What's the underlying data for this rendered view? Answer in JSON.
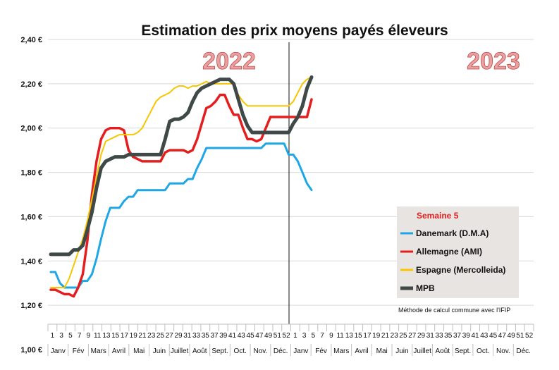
{
  "chart_data": {
    "type": "line",
    "title": "Estimation des prix moyens payés éleveurs",
    "year_labels": [
      "2022",
      "2023"
    ],
    "ylim": [
      1.0,
      2.4
    ],
    "yticks": [
      {
        "v": 1.0,
        "label": "1,00 €"
      },
      {
        "v": 1.2,
        "label": "1,20 €"
      },
      {
        "v": 1.4,
        "label": "1,40 €"
      },
      {
        "v": 1.6,
        "label": "1,60 €"
      },
      {
        "v": 1.8,
        "label": "1,80 €"
      },
      {
        "v": 2.0,
        "label": "2,00 €"
      },
      {
        "v": 2.2,
        "label": "2,20 €"
      },
      {
        "v": 2.4,
        "label": "2,40 €"
      }
    ],
    "x_week_labels": [
      "1",
      "3",
      "5",
      "7",
      "9",
      "11",
      "13",
      "15",
      "17",
      "19",
      "21",
      "23",
      "25",
      "27",
      "29",
      "31",
      "33",
      "35",
      "37",
      "39",
      "41",
      "43",
      "45",
      "47",
      "49",
      "51",
      "52",
      "1",
      "3",
      "5",
      "7",
      "9",
      "11",
      "13",
      "15",
      "17",
      "19",
      "21",
      "23",
      "25",
      "27",
      "29",
      "31",
      "33",
      "35",
      "37",
      "39",
      "41",
      "43",
      "45",
      "47",
      "49",
      "51",
      "52"
    ],
    "x_month_labels": [
      "Janv",
      "Fév",
      "Mars",
      "Avril",
      "Mai",
      "Juin",
      "Juillet",
      "Août",
      "Sept.",
      "Oct.",
      "Nov.",
      "Déc.",
      "Janv",
      "Fév",
      "Mars",
      "Avril",
      "Mai",
      "Juin",
      "Juillet",
      "Août",
      "Sept.",
      "Oct.",
      "Nov.",
      "Déc."
    ],
    "legend": {
      "title": "Semaine 5",
      "placement": "bottom-right"
    },
    "note": "Méthode de calcul commune avec l'IFIP",
    "series": [
      {
        "name": "Danemark (D.M.A)",
        "color": "#1ea7e4",
        "values": [
          1.35,
          1.35,
          1.3,
          1.28,
          1.28,
          1.28,
          1.28,
          1.31,
          1.31,
          1.34,
          1.41,
          1.5,
          1.58,
          1.64,
          1.64,
          1.64,
          1.67,
          1.69,
          1.69,
          1.72,
          1.72,
          1.72,
          1.72,
          1.72,
          1.72,
          1.72,
          1.75,
          1.75,
          1.75,
          1.75,
          1.77,
          1.77,
          1.82,
          1.86,
          1.91,
          1.91,
          1.91,
          1.91,
          1.91,
          1.91,
          1.91,
          1.91,
          1.91,
          1.91,
          1.91,
          1.91,
          1.91,
          1.93,
          1.93,
          1.93,
          1.93,
          1.93,
          1.88,
          1.88,
          1.85,
          1.8,
          1.75,
          1.72
        ]
      },
      {
        "name": "Allemagne (AMI)",
        "color": "#e41e1e",
        "values": [
          1.27,
          1.27,
          1.26,
          1.25,
          1.25,
          1.24,
          1.28,
          1.34,
          1.49,
          1.7,
          1.85,
          1.95,
          1.99,
          2.0,
          2.0,
          2.0,
          1.99,
          1.9,
          1.87,
          1.86,
          1.85,
          1.85,
          1.85,
          1.85,
          1.85,
          1.89,
          1.9,
          1.9,
          1.9,
          1.9,
          1.89,
          1.9,
          1.95,
          2.02,
          2.09,
          2.1,
          2.12,
          2.15,
          2.15,
          2.1,
          2.06,
          2.06,
          2.0,
          1.95,
          1.95,
          1.94,
          1.95,
          2.0,
          2.05,
          2.05,
          2.05,
          2.05,
          2.05,
          2.05,
          2.05,
          2.05,
          2.05,
          2.13
        ]
      },
      {
        "name": "Espagne (Mercolleida)",
        "color": "#f7c600",
        "values": [
          1.28,
          1.28,
          1.28,
          1.28,
          1.32,
          1.38,
          1.44,
          1.5,
          1.58,
          1.68,
          1.78,
          1.88,
          1.94,
          1.95,
          1.96,
          1.97,
          1.97,
          1.97,
          1.97,
          1.98,
          2.0,
          2.04,
          2.08,
          2.12,
          2.14,
          2.15,
          2.16,
          2.18,
          2.19,
          2.19,
          2.18,
          2.19,
          2.19,
          2.2,
          2.21,
          2.2,
          2.2,
          2.2,
          2.2,
          2.2,
          2.2,
          2.15,
          2.12,
          2.1,
          2.1,
          2.1,
          2.1,
          2.1,
          2.1,
          2.1,
          2.1,
          2.1,
          2.1,
          2.12,
          2.16,
          2.2,
          2.22,
          2.23
        ]
      },
      {
        "name": "MPB",
        "color": "#3f4a48",
        "values": [
          1.43,
          1.43,
          1.43,
          1.43,
          1.43,
          1.45,
          1.45,
          1.47,
          1.54,
          1.62,
          1.73,
          1.82,
          1.85,
          1.86,
          1.87,
          1.87,
          1.87,
          1.88,
          1.88,
          1.88,
          1.88,
          1.88,
          1.88,
          1.88,
          1.88,
          1.95,
          2.03,
          2.04,
          2.04,
          2.05,
          2.07,
          2.12,
          2.16,
          2.18,
          2.19,
          2.2,
          2.21,
          2.22,
          2.22,
          2.22,
          2.2,
          2.13,
          2.06,
          2.01,
          1.98,
          1.98,
          1.98,
          1.98,
          1.98,
          1.98,
          1.98,
          1.98,
          1.98,
          2.02,
          2.05,
          2.1,
          2.18,
          2.23
        ]
      }
    ]
  }
}
